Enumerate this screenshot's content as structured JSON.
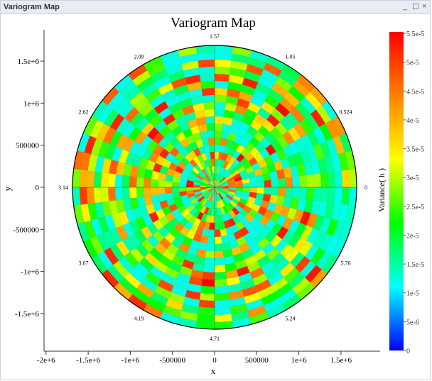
{
  "window": {
    "title": "Variogram Map",
    "controls": [
      "_",
      "☐",
      "×"
    ]
  },
  "chart_data": {
    "type": "heatmap",
    "subtype": "polar",
    "title": "Variogram Map",
    "xlabel": "x",
    "ylabel": "y",
    "xticks": [
      "-2e+6",
      "-1.5e+6",
      "-1e+6",
      "-500000",
      "0",
      "500000",
      "1e+6",
      "1.5e+6"
    ],
    "xtick_values": [
      -2000000,
      -1500000,
      -1000000,
      -500000,
      0,
      500000,
      1000000,
      1500000
    ],
    "yticks": [
      "1.5e+6",
      "1e+6",
      "500000",
      "0",
      "-500000",
      "-1e+6",
      "-1.5e+6"
    ],
    "ytick_values": [
      1500000,
      1000000,
      500000,
      0,
      -500000,
      -1000000,
      -1500000
    ],
    "max_radius": 1690000,
    "angle_labels": [
      "0",
      "0.524",
      "1.05",
      "1.57",
      "2.09",
      "2.62",
      "3.14",
      "3.67",
      "4.19",
      "4.71",
      "5.24",
      "5.76"
    ],
    "colorbar": {
      "label": "Variance( h )",
      "min": 0,
      "max": 5.5e-05,
      "ticks": [
        "0",
        "5e-6",
        "1e-5",
        "1.5e-5",
        "2e-5",
        "2.5e-5",
        "3e-5",
        "3.5e-5",
        "4e-5",
        "4.5e-5",
        "5e-5",
        "5.5e-5"
      ],
      "colors": [
        "#0000ff",
        "#00ffff",
        "#00ff00",
        "#ffff00",
        "#ff8000",
        "#ff0000"
      ]
    },
    "value_range_shown": [
      1.2e-05,
      5.5e-05
    ]
  }
}
